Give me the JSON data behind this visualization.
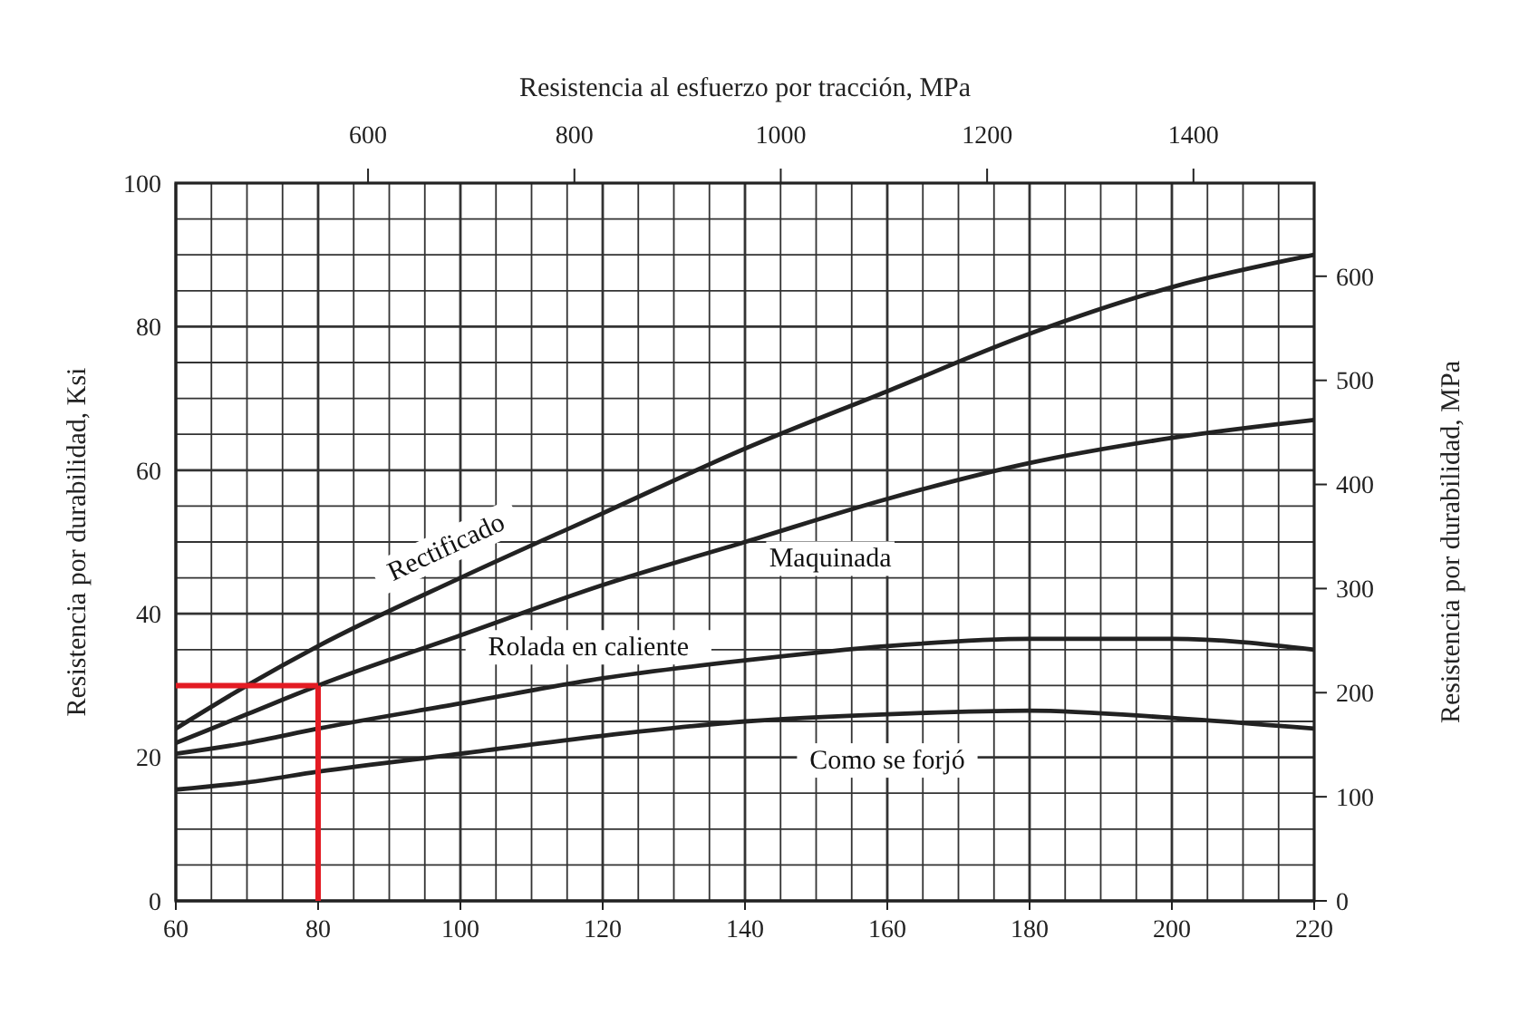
{
  "chart_data": {
    "type": "line",
    "x2label": "Resistencia al esfuerzo por tracción, MPa",
    "ylabel": "Resistencia por durabilidad, Ksi",
    "y2label": "Resistencia por durabilidad, MPa",
    "x": [
      60,
      70,
      80,
      100,
      120,
      140,
      160,
      180,
      200,
      220
    ],
    "series": [
      {
        "name": "Rectificado",
        "color": "#222222",
        "values": [
          24,
          30,
          35.5,
          45,
          54,
          63,
          71,
          79,
          85.5,
          90
        ]
      },
      {
        "name": "Maquinada",
        "color": "#222222",
        "values": [
          22,
          26,
          30,
          37,
          44,
          50,
          56,
          61,
          64.5,
          67
        ]
      },
      {
        "name": "Rolada en caliente",
        "color": "#222222",
        "values": [
          20.5,
          22,
          24,
          27.5,
          31,
          33.5,
          35.5,
          36.5,
          36.5,
          35
        ]
      },
      {
        "name": "Como se forjó",
        "color": "#222222",
        "values": [
          15.5,
          16.5,
          18,
          20.5,
          23,
          25,
          26,
          26.5,
          25.5,
          24
        ]
      }
    ],
    "xlim": [
      60,
      220
    ],
    "xticks": [
      60,
      80,
      100,
      120,
      140,
      160,
      180,
      200,
      220
    ],
    "x2lim": [
      413.7,
      1517
    ],
    "x2ticks": [
      600,
      800,
      1000,
      1200,
      1400
    ],
    "ylim": [
      0,
      100
    ],
    "yticks": [
      0,
      20,
      40,
      60,
      80,
      100
    ],
    "y2lim": [
      0,
      689.5
    ],
    "y2ticks": [
      0,
      100,
      200,
      300,
      400,
      500,
      600
    ],
    "ref_lines": [
      {
        "axis": "x",
        "value": 80,
        "color": "#e31b23"
      },
      {
        "axis": "y",
        "value": 30,
        "color": "#e31b23"
      }
    ],
    "grid": true,
    "marker": "none",
    "line_style": "solid"
  }
}
